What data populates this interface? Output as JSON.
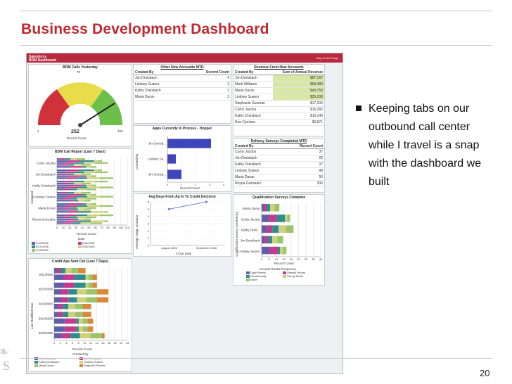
{
  "slide": {
    "title": "Business Development Dashboard",
    "page_number": "20",
    "logo_letter": "S",
    "bullet": "Keeping tabs on our outbound call center while I travel is a snap with the dashboard we built"
  },
  "dashboard": {
    "header_line1": "Salesforce",
    "header_line2": "BDM Dashboard",
    "header_link": "Help for this Page",
    "gauge": {
      "title": "BDM Calls Yesterday",
      "value": 252,
      "min": 1,
      "mid": 75,
      "max": 150,
      "label": "Record Count"
    },
    "accounts": {
      "title": "Other New Accounts MTD",
      "col1": "Created By",
      "col2": "Record Count",
      "rows": [
        {
          "name": "Jim Dreisbach",
          "count": "4"
        },
        {
          "name": "Lindsey Suarez",
          "count": "3"
        },
        {
          "name": "Kathy Dreisbach",
          "count": "2"
        },
        {
          "name": "Maria Duran",
          "count": "2"
        }
      ]
    },
    "revenue": {
      "title": "Revenue From New Accounts",
      "col1": "Created By",
      "col2": "Sum of Annual Revenue",
      "rows": [
        {
          "name": "Jim Dreisbach",
          "value": "$87,157"
        },
        {
          "name": "Mark Williams",
          "value": "$58,380"
        },
        {
          "name": "Maria Duran",
          "value": "$43,750"
        },
        {
          "name": "Lindsey Suarez",
          "value": "$25,208"
        },
        {
          "name": "Stephanie Guzman",
          "value": "$17,206"
        },
        {
          "name": "Curtis Jacobs",
          "value": "$16,282"
        },
        {
          "name": "Kathy Dreisbach",
          "value": "$10,140"
        },
        {
          "name": "Ron Cipriano",
          "value": "$3,871"
        }
      ]
    },
    "calls_report": {
      "title": "BDM Call Report (Last 7 Days)",
      "ylabel": "Assigned",
      "xlabel": "Record Count",
      "categories": [
        "Curtis Jacobs",
        "Jim Dreisbach",
        "Kathy Dreisbach",
        "Lindsey Suarez",
        "Maria Duran",
        "Reyna Gonzalez"
      ],
      "xticks": [
        "0",
        "10",
        "20",
        "30",
        "40",
        "50",
        "60",
        "70",
        "80",
        "90",
        "100",
        "110"
      ],
      "legend_title": "Date",
      "legend": [
        "9/12/2006",
        "9/13/2006",
        "9/14/2006",
        "9/15/2006",
        "9/18/2006"
      ],
      "colors": [
        "#5e5fa8",
        "#c43a8e",
        "#2e8d8a",
        "#d0d07a",
        "#9bc56a"
      ]
    },
    "apps": {
      "title": "Apps Currently In Process - Hopper",
      "ylabel": "Created By",
      "xlabel": "Record Count",
      "categories": [
        "Jim Dreisb...",
        "Lindsey Su...",
        "Jim Dreisb..."
      ],
      "values": [
        3.1,
        0.6,
        1.0
      ],
      "xticks": [
        "0",
        "1",
        "2",
        "3",
        "4"
      ],
      "color": "#3f46b9"
    },
    "avg_days": {
      "title": "Avg Days From Ap In To Credit Decision",
      "ylabel": "Average Stage Duration",
      "xlabel": "Close Date",
      "x": [
        "August 2006",
        "September 2006"
      ],
      "y": [
        5,
        6
      ],
      "yticks": [
        "0",
        "1",
        "2",
        "3",
        "4",
        "5",
        "6"
      ],
      "color": "#4b63c8"
    },
    "surveys": {
      "title": "Delivery Surveys Completed MTD",
      "col1": "Created By",
      "col2": "Record Count",
      "rows": [
        {
          "name": "Curtis Jacobs",
          "count": "37"
        },
        {
          "name": "Jim Dreisbach",
          "count": "22"
        },
        {
          "name": "Kathy Dreisbach",
          "count": "37"
        },
        {
          "name": "Lindsey Suarez",
          "count": "49"
        },
        {
          "name": "Maria Duran",
          "count": "50"
        },
        {
          "name": "Reyna Gonzalez",
          "count": "306"
        }
      ]
    },
    "qualification": {
      "title": "Qualification Surveys Complete",
      "ylabel": "Qualification Survey Created By",
      "xlabel": "Record Count",
      "categories": [
        "Maria Duran",
        "Curtis Jacobs",
        "Kathy Dreis...",
        "Jim Dreisbach",
        "Lindsey Suarez"
      ],
      "xticks": [
        "0",
        "5",
        "10",
        "15",
        "20",
        "25",
        "30",
        "35",
        "40"
      ],
      "legend_title": "Account Rental Frequency",
      "legend": [
        "Daily Rental",
        "Weekly Rental",
        "Occasionally",
        "Rarely Rents",
        "None"
      ],
      "colors": [
        "#5e5fa8",
        "#c43a8e",
        "#2e8d8a",
        "#d0d07a",
        "#9bc56a"
      ]
    },
    "credit_apps": {
      "title": "Credit Aps Sent Out (Last 7 Days)",
      "ylabel": "Last Modified Date",
      "xlabel": "Record Count",
      "categories": [
        "9/11/2006",
        "9/12/2006",
        "9/13/2006",
        "9/14/2006",
        "9/15/2006"
      ],
      "xticks": [
        "0",
        "2",
        "4",
        "6",
        "8",
        "10",
        "12",
        "14",
        "16",
        "18",
        "20",
        "22",
        "24"
      ],
      "legend_title": "Created By",
      "legend": [
        "Curtis Jacobs",
        "Jim Dreisbach",
        "Kathy Dreisbach",
        "Lindsey Suarez",
        "Maria Duran",
        "Reginald Flinders"
      ],
      "colors": [
        "#5e5fa8",
        "#c43a8e",
        "#2e8d8a",
        "#d0d07a",
        "#9bc56a",
        "#d8893a"
      ]
    }
  }
}
